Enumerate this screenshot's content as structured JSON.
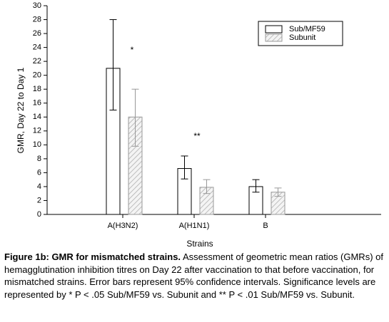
{
  "chart_data": {
    "type": "bar",
    "ylabel": "GMR, Day 22 to Day 1",
    "xlabel": "Strains",
    "categories": [
      "A(H3N2)",
      "A(H1N1)",
      "B"
    ],
    "series": [
      {
        "name": "Sub/MF59",
        "color": "#ffffff",
        "hatch": false,
        "error_color": "#000000",
        "values": [
          21,
          6.6,
          4.0
        ],
        "err_low": [
          15,
          5.1,
          3.2
        ],
        "err_high": [
          28,
          8.4,
          5.0
        ]
      },
      {
        "name": "Subunit",
        "color": "#b0b0b0",
        "hatch": true,
        "error_color": "#999999",
        "values": [
          14,
          3.9,
          3.2
        ],
        "err_low": [
          9.8,
          3.0,
          2.6
        ],
        "err_high": [
          18,
          5.0,
          3.8
        ]
      }
    ],
    "annotations": [
      "*",
      "**"
    ],
    "ylim": [
      0,
      30
    ],
    "yticks": [
      0,
      2,
      4,
      6,
      8,
      10,
      12,
      14,
      16,
      18,
      20,
      22,
      24,
      26,
      28,
      30
    ],
    "legend": "upper right"
  },
  "caption": {
    "title": "Figure 1b: GMR for mismatched strains.",
    "text": "Assessment of geometric mean ratios (GMRs) of hemagglutination inhibition titres on Day 22 after vaccination to that before vaccination, for mismatched strains. Error bars represent 95% confidence intervals. Significance levels are represented by * P < .05 Sub/MF59 vs. Subunit and ** P < .01 Sub/MF59 vs. Subunit."
  }
}
